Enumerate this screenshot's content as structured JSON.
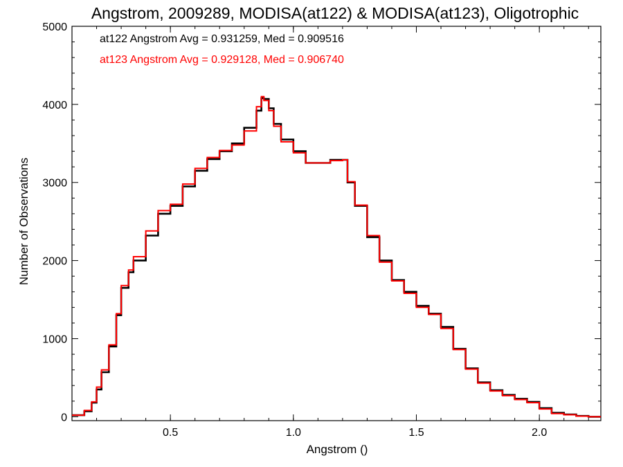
{
  "chart_data": {
    "type": "line",
    "title": "Angstrom, 2009289, MODISA(at122) & MODISA(at123), Oligotrophic",
    "xlabel": "Angstrom ()",
    "ylabel": "Number of Observations",
    "xlim": [
      0.1,
      2.25
    ],
    "ylim": [
      -50,
      5000
    ],
    "x_ticks": [
      "0.5",
      "1.0",
      "1.5",
      "2.0"
    ],
    "y_ticks": [
      "0",
      "1000",
      "2000",
      "3000",
      "4000",
      "5000"
    ],
    "legend": [
      {
        "text": "at122 Angstrom Avg = 0.931259, Med = 0.909516",
        "color": "#000000"
      },
      {
        "text": "at123 Angstrom Avg = 0.929128, Med = 0.906740",
        "color": "#ff0000"
      }
    ],
    "series": [
      {
        "name": "at122",
        "color": "#000000",
        "x": [
          0.1,
          0.15,
          0.18,
          0.2,
          0.22,
          0.25,
          0.28,
          0.3,
          0.33,
          0.35,
          0.4,
          0.45,
          0.5,
          0.55,
          0.6,
          0.65,
          0.7,
          0.75,
          0.8,
          0.85,
          0.87,
          0.88,
          0.9,
          0.92,
          0.95,
          1.0,
          1.05,
          1.1,
          1.15,
          1.2,
          1.22,
          1.25,
          1.3,
          1.35,
          1.4,
          1.45,
          1.5,
          1.55,
          1.6,
          1.65,
          1.7,
          1.75,
          1.8,
          1.85,
          1.9,
          1.95,
          2.0,
          2.05,
          2.1,
          2.15,
          2.2,
          2.25
        ],
        "y": [
          20,
          70,
          180,
          350,
          570,
          900,
          1300,
          1650,
          1850,
          2000,
          2320,
          2600,
          2700,
          2950,
          3150,
          3300,
          3400,
          3500,
          3700,
          3920,
          4080,
          4070,
          3950,
          3750,
          3550,
          3400,
          3250,
          3250,
          3290,
          3290,
          3000,
          2700,
          2300,
          2000,
          1750,
          1600,
          1420,
          1320,
          1150,
          870,
          620,
          440,
          340,
          280,
          230,
          190,
          110,
          50,
          30,
          10,
          0,
          0
        ]
      },
      {
        "name": "at123",
        "color": "#ff0000",
        "x": [
          0.1,
          0.15,
          0.18,
          0.2,
          0.22,
          0.25,
          0.28,
          0.3,
          0.33,
          0.35,
          0.4,
          0.45,
          0.5,
          0.55,
          0.6,
          0.65,
          0.7,
          0.75,
          0.8,
          0.85,
          0.87,
          0.88,
          0.9,
          0.92,
          0.95,
          1.0,
          1.05,
          1.1,
          1.15,
          1.2,
          1.22,
          1.25,
          1.3,
          1.35,
          1.4,
          1.45,
          1.5,
          1.55,
          1.6,
          1.65,
          1.7,
          1.75,
          1.8,
          1.85,
          1.9,
          1.95,
          2.0,
          2.05,
          2.1,
          2.15,
          2.2,
          2.25
        ],
        "y": [
          20,
          80,
          190,
          380,
          600,
          920,
          1320,
          1680,
          1880,
          2050,
          2380,
          2640,
          2720,
          2980,
          3180,
          3320,
          3410,
          3480,
          3660,
          3970,
          4100,
          4050,
          3920,
          3720,
          3520,
          3380,
          3250,
          3250,
          3280,
          3290,
          3010,
          2710,
          2320,
          1980,
          1740,
          1580,
          1400,
          1310,
          1130,
          860,
          610,
          430,
          330,
          270,
          220,
          180,
          100,
          40,
          25,
          8,
          0,
          0
        ]
      }
    ]
  }
}
